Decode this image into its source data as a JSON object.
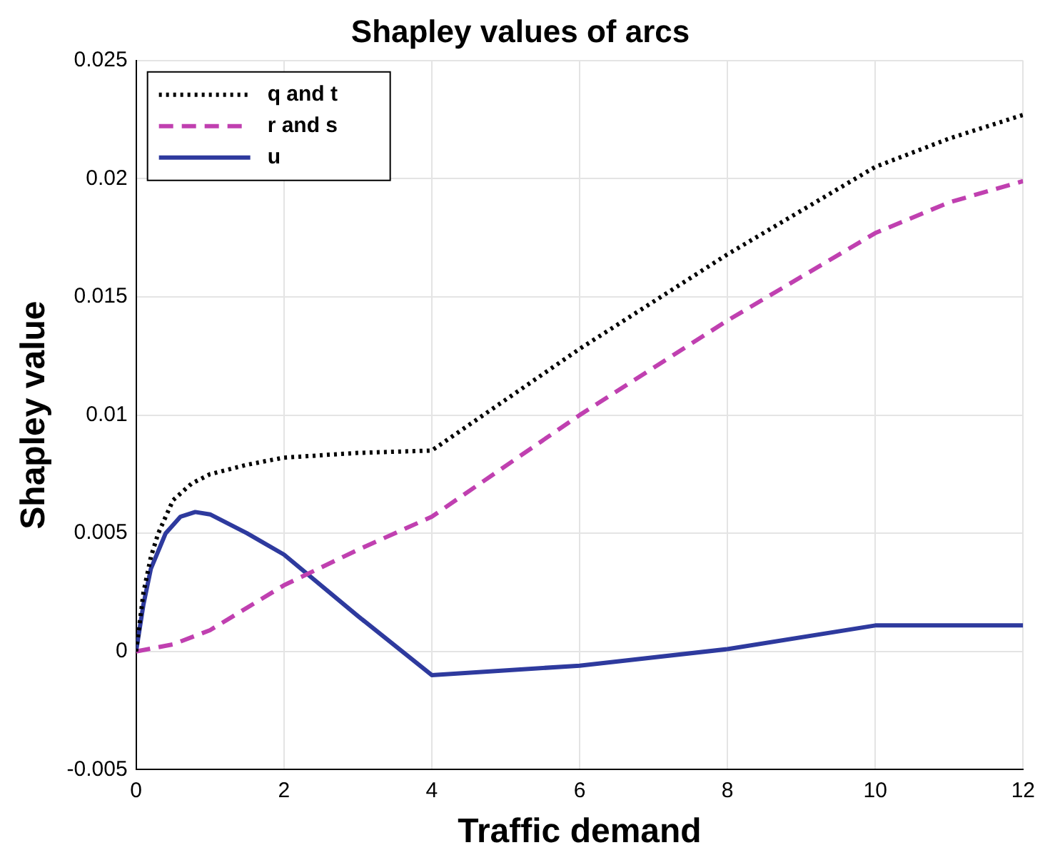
{
  "chart_data": {
    "type": "line",
    "title": "Shapley values of arcs",
    "xlabel": "Traffic demand",
    "ylabel": "Shapley value",
    "xlim": [
      0,
      12
    ],
    "xticks": [
      0,
      2,
      4,
      6,
      8,
      10,
      12
    ],
    "ylim": [
      -0.005,
      0.025
    ],
    "yticks": [
      -0.005,
      0,
      0.005,
      0.01,
      0.015,
      0.02,
      0.025
    ],
    "grid": true,
    "legend": "top left",
    "marker": "none",
    "series": [
      {
        "name": "q and t",
        "color": "#000000",
        "line_style": "dotted",
        "x": [
          0,
          0.1,
          0.2,
          0.3,
          0.5,
          0.75,
          1,
          1.5,
          2,
          3,
          4,
          6,
          8,
          10,
          11,
          12
        ],
        "values": [
          0,
          0.0025,
          0.004,
          0.005,
          0.0064,
          0.0071,
          0.0075,
          0.0079,
          0.0082,
          0.0084,
          0.0085,
          0.0128,
          0.0168,
          0.0205,
          0.0217,
          0.0227
        ]
      },
      {
        "name": "r and s",
        "color": "#c040b0",
        "line_style": "dashed",
        "x": [
          0,
          0.5,
          1,
          2,
          3,
          4,
          6,
          8,
          10,
          11,
          12
        ],
        "values": [
          0,
          0.0003,
          0.0009,
          0.0028,
          0.0043,
          0.0057,
          0.01,
          0.014,
          0.0177,
          0.019,
          0.0199
        ]
      },
      {
        "name": "u",
        "color": "#2e3a9e",
        "line_style": "solid",
        "x": [
          0,
          0.1,
          0.2,
          0.4,
          0.6,
          0.8,
          1,
          1.5,
          2,
          3,
          4,
          6,
          8,
          10,
          12
        ],
        "values": [
          0,
          0.002,
          0.0035,
          0.005,
          0.0057,
          0.0059,
          0.0058,
          0.005,
          0.0041,
          0.0015,
          -0.001,
          -0.0006,
          0.0001,
          0.0011,
          0.0011
        ]
      }
    ]
  }
}
